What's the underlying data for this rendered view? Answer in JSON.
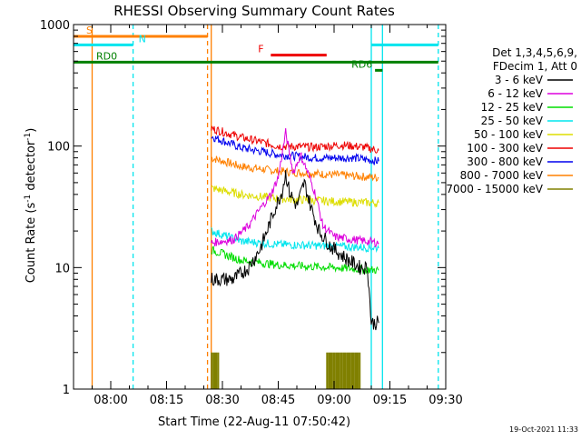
{
  "chart_data": {
    "type": "line",
    "title": "RHESSI Observing Summary Count Rates",
    "xlabel": "Start Time (22-Aug-11 07:50:42)",
    "ylabel_main": "Count Rate (s",
    "ylabel_sup1": "-1",
    "ylabel_mid": " detector",
    "ylabel_sup2": "-1",
    "ylabel_end": ")",
    "yscale": "log",
    "xlim": [
      "07:50",
      "09:30"
    ],
    "ylim": [
      1,
      1000
    ],
    "x_ticks": [
      "08:00",
      "08:15",
      "08:30",
      "08:45",
      "09:00",
      "09:15",
      "09:30"
    ],
    "y_ticks": [
      "1",
      "10",
      "100",
      "1000"
    ],
    "legend_header": [
      "Det 1,3,4,5,6,9,",
      "FDecim 1, Att 0"
    ],
    "legend_position": "right",
    "series": [
      {
        "name": "3 - 6 keV",
        "color": "#000000"
      },
      {
        "name": "6 - 12 keV",
        "color": "#dd00dd"
      },
      {
        "name": "12 - 25 keV",
        "color": "#00dd00"
      },
      {
        "name": "25 - 50 keV",
        "color": "#00e5ee"
      },
      {
        "name": "50 - 100 keV",
        "color": "#dddd00"
      },
      {
        "name": "100 - 300 keV",
        "color": "#ee0000"
      },
      {
        "name": "300 - 800 keV",
        "color": "#0000ee"
      },
      {
        "name": "800 - 7000 keV",
        "color": "#ff8000"
      },
      {
        "name": "7000 - 15000 keV",
        "color": "#808000"
      }
    ],
    "series_data": {
      "3 - 6 keV": [
        [
          "08:27",
          8
        ],
        [
          "08:33",
          8
        ],
        [
          "08:37",
          10
        ],
        [
          "08:40",
          14
        ],
        [
          "08:42",
          20
        ],
        [
          "08:44",
          30
        ],
        [
          "08:46",
          42
        ],
        [
          "08:47",
          60
        ],
        [
          "08:48",
          42
        ],
        [
          "08:50",
          32
        ],
        [
          "08:52",
          50
        ],
        [
          "08:54",
          30
        ],
        [
          "08:56",
          20
        ],
        [
          "08:59",
          15
        ],
        [
          "09:03",
          12
        ],
        [
          "09:07",
          10
        ],
        [
          "09:09",
          10
        ],
        [
          "09:10",
          3.5
        ],
        [
          "09:12",
          3.5
        ]
      ],
      "6 - 12 keV": [
        [
          "08:27",
          16
        ],
        [
          "08:33",
          17
        ],
        [
          "08:37",
          22
        ],
        [
          "08:40",
          30
        ],
        [
          "08:43",
          40
        ],
        [
          "08:45",
          55
        ],
        [
          "08:47",
          130
        ],
        [
          "08:49",
          60
        ],
        [
          "08:51",
          85
        ],
        [
          "08:53",
          60
        ],
        [
          "08:55",
          40
        ],
        [
          "08:57",
          22
        ],
        [
          "09:00",
          18
        ],
        [
          "09:05",
          17
        ],
        [
          "09:12",
          16
        ]
      ],
      "12 - 25 keV": [
        [
          "08:27",
          14
        ],
        [
          "08:35",
          11.5
        ],
        [
          "08:45",
          10.5
        ],
        [
          "09:00",
          10
        ],
        [
          "09:12",
          9.5
        ]
      ],
      "25 - 50 keV": [
        [
          "08:27",
          20
        ],
        [
          "08:35",
          16.5
        ],
        [
          "08:45",
          15.5
        ],
        [
          "09:00",
          15
        ],
        [
          "09:12",
          14.5
        ]
      ],
      "50 - 100 keV": [
        [
          "08:27",
          45
        ],
        [
          "08:35",
          40
        ],
        [
          "08:45",
          37
        ],
        [
          "09:00",
          35
        ],
        [
          "09:12",
          34
        ]
      ],
      "100 - 300 keV": [
        [
          "08:27",
          140
        ],
        [
          "08:35",
          118
        ],
        [
          "08:45",
          100
        ],
        [
          "08:55",
          98
        ],
        [
          "09:02",
          102
        ],
        [
          "09:08",
          98
        ],
        [
          "09:12",
          92
        ]
      ],
      "300 - 800 keV": [
        [
          "08:27",
          120
        ],
        [
          "08:35",
          97
        ],
        [
          "08:45",
          85
        ],
        [
          "08:55",
          80
        ],
        [
          "09:05",
          80
        ],
        [
          "09:12",
          75
        ]
      ],
      "800 - 7000 keV": [
        [
          "08:27",
          80
        ],
        [
          "08:35",
          68
        ],
        [
          "08:45",
          62
        ],
        [
          "09:00",
          58
        ],
        [
          "09:12",
          55
        ]
      ],
      "7000 - 15000 keV": [
        [
          "08:27",
          2
        ],
        [
          "08:29",
          2
        ],
        [
          "08:58",
          2
        ],
        [
          "09:07",
          2
        ]
      ]
    },
    "annotations": [
      {
        "label": "S",
        "color": "#ff8000",
        "x_start": "07:50",
        "x_end": "08:26",
        "y": 800
      },
      {
        "label": "N",
        "color": "#00e5ee",
        "x_start": "07:50",
        "x_end": "08:06",
        "y": 680
      },
      {
        "label": "F",
        "color": "#ee0000",
        "x_start": "08:43",
        "x_end": "08:58",
        "y": 560
      },
      {
        "label": "RD0",
        "color": "#008000",
        "x_start": "07:50",
        "x_end": "09:28",
        "y": 490
      },
      {
        "label": "RD6",
        "color": "#008000",
        "x_start": "09:11",
        "x_end": "09:13",
        "y": 420
      },
      {
        "label": "",
        "color": "#00e5ee",
        "x_start": "09:10",
        "x_end": "09:28",
        "y": 680
      }
    ],
    "vertical_markers": [
      {
        "x": "07:55",
        "color": "#ff8000",
        "style": "solid"
      },
      {
        "x": "08:26",
        "color": "#ff8000",
        "style": "dashed"
      },
      {
        "x": "08:06",
        "color": "#00e5ee",
        "style": "dashed"
      },
      {
        "x": "08:27",
        "color": "#ff8000",
        "style": "solid"
      },
      {
        "x": "09:10",
        "color": "#00e5ee",
        "style": "solid"
      },
      {
        "x": "09:13",
        "color": "#00e5ee",
        "style": "solid"
      },
      {
        "x": "09:28",
        "color": "#00e5ee",
        "style": "dashed"
      }
    ],
    "timestamp": "19-Oct-2021 11:33"
  }
}
